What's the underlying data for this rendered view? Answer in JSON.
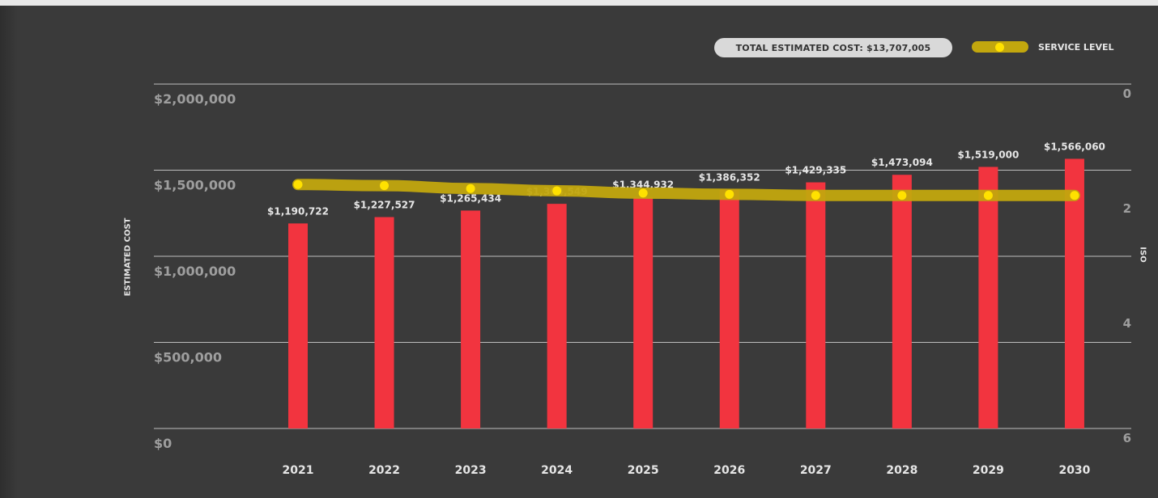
{
  "chart_data": {
    "type": "bar",
    "title": "",
    "total_label": "TOTAL ESTIMATED COST: $13,707,005",
    "categories": [
      "2021",
      "2022",
      "2023",
      "2024",
      "2025",
      "2026",
      "2027",
      "2028",
      "2029",
      "2030"
    ],
    "series": [
      {
        "values": [
          1190722,
          1227527,
          1265434,
          1304549,
          1344932,
          1386352,
          1429335,
          1473094,
          1519000,
          1566060
        ],
        "value_labels": [
          "$1,190,722",
          "$1,227,527",
          "$1,265,434",
          "$1,304,549",
          "$1,344,932",
          "$1,386,352",
          "$1,429,335",
          "$1,473,094",
          "$1,519,000",
          "$1,566,060"
        ],
        "color": "#f2343f"
      },
      {
        "name": "SERVICE LEVEL",
        "type": "line",
        "axis": "right",
        "values": [
          1.75,
          1.77,
          1.82,
          1.86,
          1.9,
          1.92,
          1.94,
          1.94,
          1.94,
          1.94
        ],
        "color": "#c2a70e",
        "marker_color": "#ffe100"
      }
    ],
    "ylabel": "ESTIMATED COST",
    "ylim": [
      0,
      2000000
    ],
    "yticks": [
      "$0",
      "$500,000",
      "$1,000,000",
      "$1,500,000",
      "$2,000,000"
    ],
    "ylabel_right": "ISO",
    "ylim_right": [
      0,
      6
    ],
    "right_axis_inverted": true,
    "yticks_right": [
      "0",
      "2",
      "4",
      "6"
    ],
    "grid": true,
    "legend_position": "top-right"
  }
}
